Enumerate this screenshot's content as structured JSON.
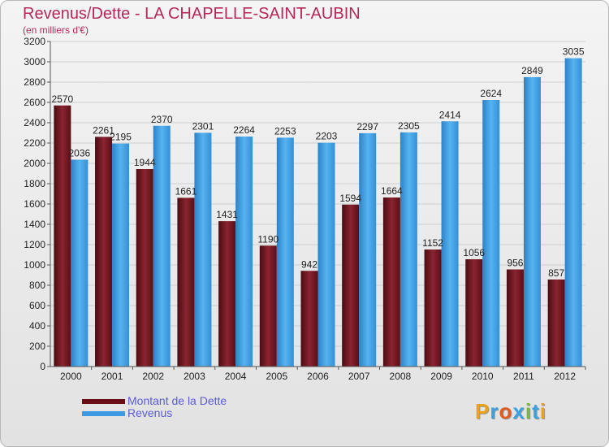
{
  "title": "Revenus/Dette - LA CHAPELLE-SAINT-AUBIN",
  "subtitle": "(en milliers d'€)",
  "logo": {
    "text": "Proxiti",
    "colors": [
      "#e8a317",
      "#3aa1e0",
      "#e05a1e",
      "#3aa1e0",
      "#7cb83a",
      "#3aa1e0",
      "#e8a317"
    ]
  },
  "chart_data": {
    "type": "bar",
    "categories": [
      "2000",
      "2001",
      "2002",
      "2003",
      "2004",
      "2005",
      "2006",
      "2007",
      "2008",
      "2009",
      "2010",
      "2011",
      "2012"
    ],
    "series": [
      {
        "name": "Montant de la Dette",
        "color": "#7a1a22",
        "values": [
          2570,
          2261,
          1944,
          1661,
          1431,
          1190,
          942,
          1594,
          1664,
          1152,
          1056,
          956,
          857
        ]
      },
      {
        "name": "Revenus",
        "color": "#3d9be3",
        "values": [
          2036,
          2195,
          2370,
          2301,
          2264,
          2253,
          2203,
          2297,
          2305,
          2414,
          2624,
          2849,
          3035
        ]
      }
    ],
    "ylim": [
      0,
      3200
    ],
    "yticks": [
      0,
      200,
      400,
      600,
      800,
      1000,
      1200,
      1400,
      1600,
      1800,
      2000,
      2200,
      2400,
      2600,
      2800,
      3000,
      3200
    ],
    "grid": true,
    "legend": "bottom-left"
  }
}
